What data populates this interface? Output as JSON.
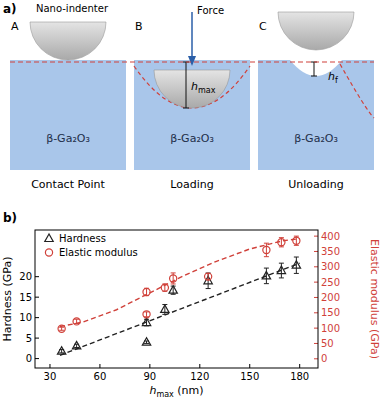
{
  "diagram": {
    "panel_label": "a)",
    "indenter_label": "Nano-indenter",
    "force_label": "Force",
    "material": "β-Ga₂O₃",
    "hmax_label": [
      "h",
      "max"
    ],
    "hf_label": [
      "h",
      "f"
    ],
    "panels": [
      {
        "letter": "A",
        "caption": "Contact Point"
      },
      {
        "letter": "B",
        "caption": "Loading"
      },
      {
        "letter": "C",
        "caption": "Unloading"
      }
    ]
  },
  "chart_data": {
    "type": "scatter",
    "panel_label": "b)",
    "x_label": [
      "h",
      "max",
      " (nm)"
    ],
    "y_label": "Hardness (GPa)",
    "y2_label": "Elastic modulus (GPa)",
    "xlim": [
      21,
      191
    ],
    "xticks": [
      30,
      60,
      90,
      120,
      150,
      180
    ],
    "ylim": [
      -2.3,
      31.4
    ],
    "yticks": [
      0,
      5,
      10,
      15,
      20
    ],
    "y2lim": [
      -30,
      420
    ],
    "y2ticks": [
      0,
      50,
      100,
      150,
      200,
      250,
      300,
      350,
      400
    ],
    "legend": "upper left",
    "series": [
      {
        "name": "Hardness",
        "color": "#222222",
        "marker": "triangle",
        "x": [
          37,
          46,
          88,
          88,
          99,
          104,
          125,
          160,
          169,
          178
        ],
        "values": [
          1.8,
          3.1,
          8.8,
          4.0,
          12.0,
          16.7,
          19.0,
          20.2,
          21.5,
          22.8
        ],
        "errors": [
          0.4,
          0.4,
          0.8,
          0.3,
          1.2,
          1.0,
          1.9,
          1.9,
          1.8,
          2.0
        ]
      },
      {
        "name": "Elastic modulus",
        "color": "#d0413a",
        "marker": "circle",
        "axis": "y2",
        "x": [
          37,
          46,
          88,
          88,
          99,
          104,
          125,
          160,
          169,
          178
        ],
        "values": [
          98,
          122,
          218,
          145,
          232,
          262,
          268,
          355,
          380,
          385
        ],
        "errors": [
          5,
          7,
          12,
          8,
          12,
          18,
          10,
          22,
          15,
          15
        ]
      },
      {
        "type": "line",
        "line_style": "dashed",
        "color": "#222222",
        "x": [
          36,
          180
        ],
        "values": [
          0.8,
          23.3
        ]
      },
      {
        "type": "line",
        "line_style": "dashed",
        "color": "#d0413a",
        "axis": "y2",
        "x": [
          36,
          50,
          70,
          90,
          110,
          130,
          150,
          170,
          180
        ],
        "values": [
          105,
          120,
          160,
          215,
          270,
          318,
          358,
          385,
          392
        ]
      }
    ]
  }
}
